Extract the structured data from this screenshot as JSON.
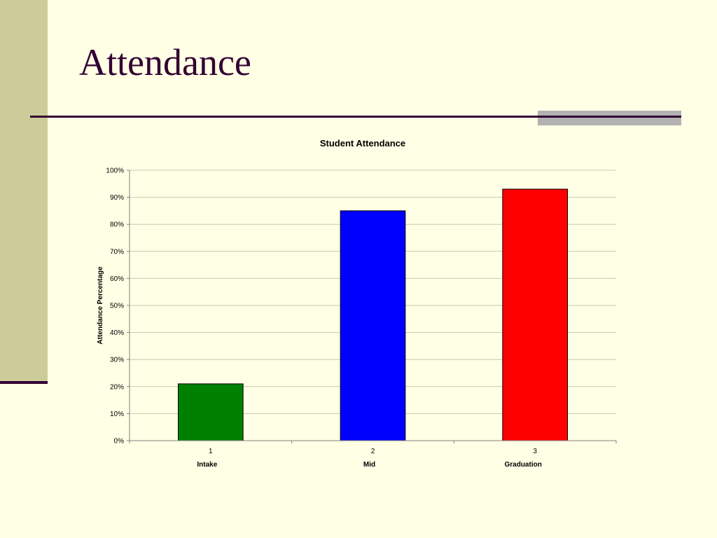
{
  "slide": {
    "title": "Attendance"
  },
  "colors": {
    "background": "#FFFFE5",
    "accent_band": "#CCCC99",
    "title_color": "#330033",
    "rule_color": "#330033",
    "grey_block": "#B2B2B2"
  },
  "chart_data": {
    "type": "bar",
    "title": "Student Attendance",
    "xlabel": "",
    "ylabel": "Attendance Percentage",
    "categories": [
      "1",
      "2",
      "3"
    ],
    "category_labels": [
      "Intake",
      "Mid",
      "Graduation"
    ],
    "values": [
      21,
      85,
      93
    ],
    "bar_colors": [
      "#008000",
      "#0000FF",
      "#FF0000"
    ],
    "ylim": [
      0,
      100
    ],
    "yticks": [
      "0%",
      "10%",
      "20%",
      "30%",
      "40%",
      "50%",
      "60%",
      "70%",
      "80%",
      "90%",
      "100%"
    ],
    "grid": true,
    "legend": "none"
  }
}
